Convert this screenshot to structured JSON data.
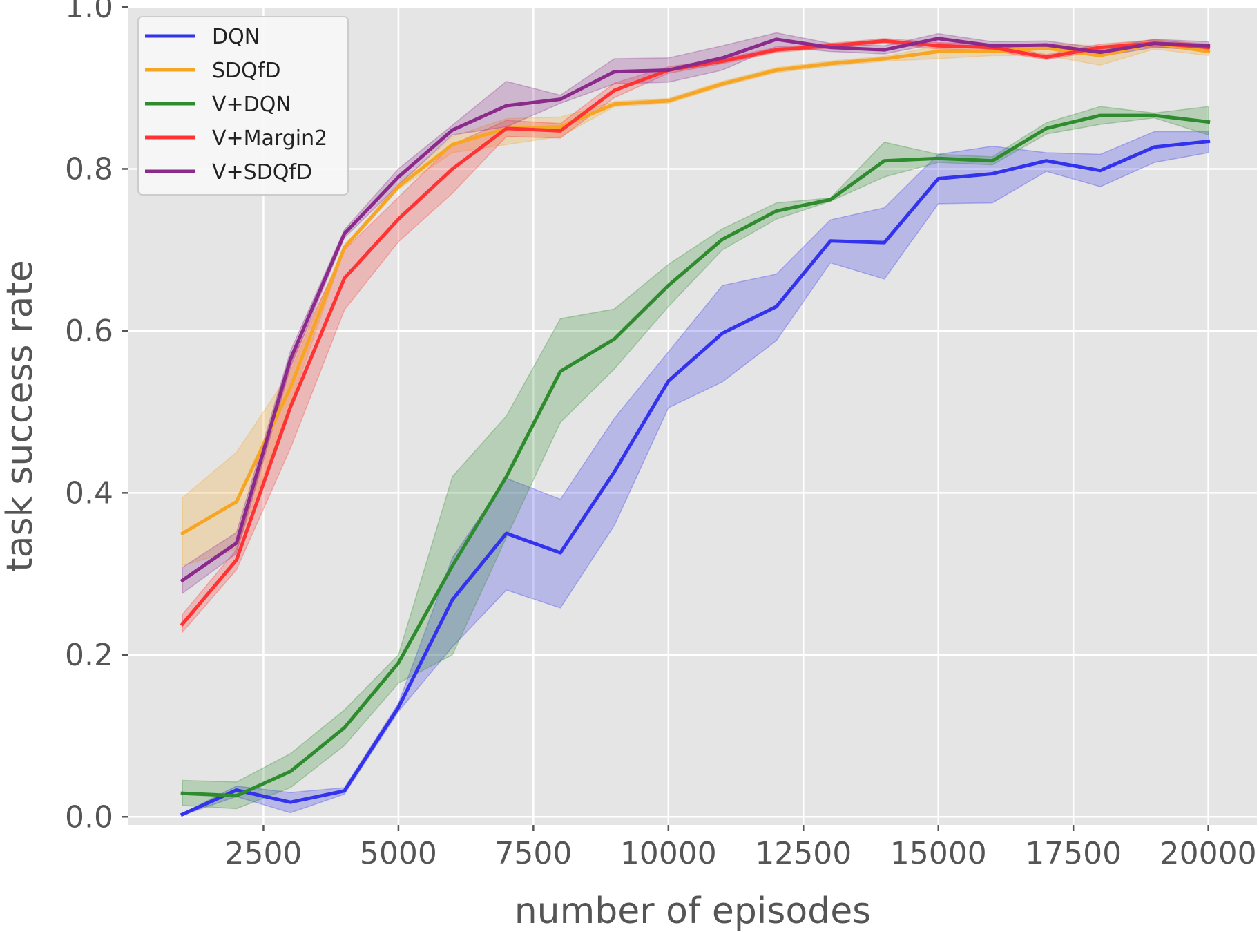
{
  "chart_data": {
    "type": "line",
    "title": "",
    "xlabel": "number of episodes",
    "ylabel": "task success rate",
    "xlim": [
      0,
      20900
    ],
    "ylim": [
      -0.01,
      1.0
    ],
    "xticks": [
      2500,
      5000,
      7500,
      10000,
      12500,
      15000,
      17500,
      20000
    ],
    "yticks": [
      0.0,
      0.2,
      0.4,
      0.6,
      0.8,
      1.0
    ],
    "xtick_labels": [
      "2500",
      "5000",
      "7500",
      "10000",
      "12500",
      "15000",
      "17500",
      "20000"
    ],
    "ytick_labels": [
      "0.0",
      "0.2",
      "0.4",
      "0.6",
      "0.8",
      "1.0"
    ],
    "grid": true,
    "legend_position": "top-left",
    "background": "#e5e5e5",
    "x": [
      1000,
      2000,
      3000,
      4000,
      5000,
      6000,
      7000,
      8000,
      9000,
      10000,
      11000,
      12000,
      13000,
      14000,
      15000,
      16000,
      17000,
      18000,
      19000,
      20000
    ],
    "series": [
      {
        "name": "DQN",
        "color": "#3333ee",
        "values": [
          0.003,
          0.033,
          0.018,
          0.032,
          0.135,
          0.268,
          0.35,
          0.326,
          0.426,
          0.538,
          0.597,
          0.63,
          0.711,
          0.709,
          0.788,
          0.794,
          0.81,
          0.798,
          0.827,
          0.834
        ],
        "lower": [
          0.002,
          0.025,
          0.005,
          0.028,
          0.13,
          0.21,
          0.28,
          0.258,
          0.36,
          0.505,
          0.537,
          0.588,
          0.684,
          0.664,
          0.757,
          0.758,
          0.797,
          0.778,
          0.808,
          0.82
        ],
        "upper": [
          0.004,
          0.038,
          0.03,
          0.036,
          0.14,
          0.32,
          0.418,
          0.392,
          0.492,
          0.574,
          0.656,
          0.67,
          0.737,
          0.752,
          0.818,
          0.828,
          0.82,
          0.818,
          0.846,
          0.846
        ]
      },
      {
        "name": "SDQfD",
        "color": "#f6a623",
        "values": [
          0.35,
          0.389,
          0.53,
          0.703,
          0.778,
          0.83,
          0.85,
          0.852,
          0.88,
          0.884,
          0.905,
          0.922,
          0.93,
          0.936,
          0.945,
          0.945,
          0.949,
          0.94,
          0.955,
          0.945
        ],
        "lower": [
          0.31,
          0.33,
          0.51,
          0.7,
          0.775,
          0.82,
          0.83,
          0.84,
          0.877,
          0.881,
          0.902,
          0.919,
          0.927,
          0.933,
          0.936,
          0.94,
          0.94,
          0.928,
          0.948,
          0.94
        ],
        "upper": [
          0.394,
          0.45,
          0.55,
          0.706,
          0.781,
          0.84,
          0.862,
          0.864,
          0.883,
          0.887,
          0.908,
          0.925,
          0.933,
          0.939,
          0.952,
          0.95,
          0.955,
          0.952,
          0.96,
          0.952
        ]
      },
      {
        "name": "V+DQN",
        "color": "#2e8b2e",
        "values": [
          0.029,
          0.026,
          0.056,
          0.11,
          0.19,
          0.31,
          0.42,
          0.55,
          0.59,
          0.656,
          0.713,
          0.748,
          0.762,
          0.81,
          0.813,
          0.81,
          0.85,
          0.866,
          0.866,
          0.858
        ],
        "lower": [
          0.014,
          0.01,
          0.036,
          0.088,
          0.165,
          0.2,
          0.345,
          0.487,
          0.553,
          0.63,
          0.7,
          0.738,
          0.76,
          0.79,
          0.808,
          0.805,
          0.843,
          0.855,
          0.863,
          0.842
        ],
        "upper": [
          0.045,
          0.043,
          0.078,
          0.132,
          0.2,
          0.42,
          0.495,
          0.615,
          0.627,
          0.682,
          0.726,
          0.758,
          0.764,
          0.833,
          0.818,
          0.815,
          0.857,
          0.877,
          0.869,
          0.877
        ]
      },
      {
        "name": "V+Margin2",
        "color": "#ff3333",
        "values": [
          0.238,
          0.317,
          0.506,
          0.665,
          0.738,
          0.8,
          0.85,
          0.847,
          0.897,
          0.922,
          0.933,
          0.947,
          0.952,
          0.958,
          0.952,
          0.95,
          0.938,
          0.95,
          0.955,
          0.95
        ],
        "lower": [
          0.228,
          0.305,
          0.455,
          0.626,
          0.71,
          0.77,
          0.84,
          0.838,
          0.888,
          0.918,
          0.93,
          0.944,
          0.949,
          0.955,
          0.948,
          0.946,
          0.935,
          0.946,
          0.951,
          0.946
        ],
        "upper": [
          0.25,
          0.33,
          0.56,
          0.7,
          0.765,
          0.83,
          0.86,
          0.856,
          0.906,
          0.926,
          0.936,
          0.95,
          0.955,
          0.961,
          0.956,
          0.954,
          0.941,
          0.954,
          0.959,
          0.954
        ]
      },
      {
        "name": "V+SDQfD",
        "color": "#8b2a8b",
        "values": [
          0.292,
          0.338,
          0.565,
          0.72,
          0.79,
          0.848,
          0.878,
          0.886,
          0.92,
          0.922,
          0.937,
          0.96,
          0.95,
          0.947,
          0.961,
          0.952,
          0.953,
          0.944,
          0.955,
          0.952
        ],
        "lower": [
          0.276,
          0.325,
          0.555,
          0.715,
          0.78,
          0.842,
          0.852,
          0.881,
          0.905,
          0.907,
          0.922,
          0.951,
          0.945,
          0.942,
          0.955,
          0.947,
          0.948,
          0.939,
          0.95,
          0.947
        ],
        "upper": [
          0.308,
          0.351,
          0.575,
          0.725,
          0.8,
          0.854,
          0.908,
          0.891,
          0.936,
          0.937,
          0.952,
          0.968,
          0.955,
          0.952,
          0.967,
          0.957,
          0.958,
          0.949,
          0.96,
          0.957
        ]
      }
    ]
  }
}
